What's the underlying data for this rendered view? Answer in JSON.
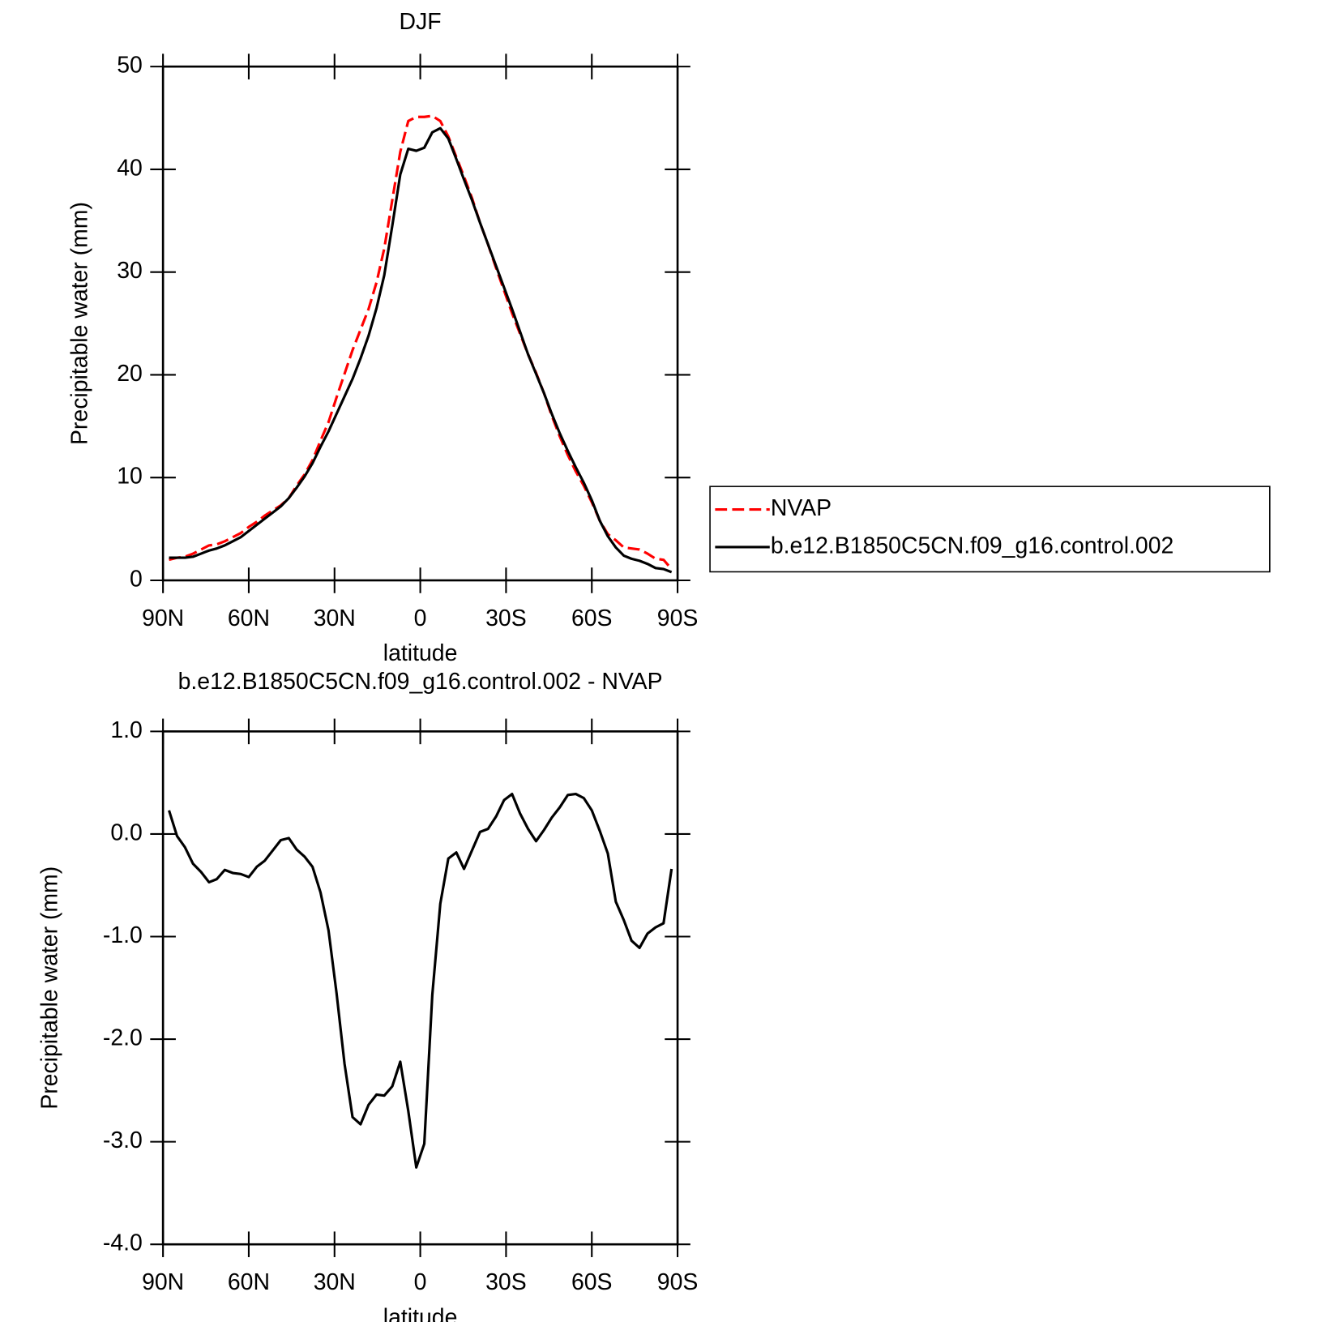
{
  "chart_data": [
    {
      "type": "line",
      "title": "DJF",
      "x_label": "latitude",
      "y_label": "Precipitable water (mm)",
      "x": [
        87.9,
        85.1,
        82.3,
        79.5,
        76.7,
        73.9,
        71.2,
        68.4,
        65.6,
        62.8,
        60.0,
        57.2,
        54.4,
        51.6,
        48.8,
        46.0,
        43.3,
        40.5,
        37.7,
        34.9,
        32.1,
        29.3,
        26.5,
        23.7,
        20.9,
        18.1,
        15.3,
        12.6,
        9.8,
        7.0,
        4.2,
        1.4,
        -1.4,
        -4.2,
        -7.0,
        -9.8,
        -12.6,
        -15.3,
        -18.1,
        -20.9,
        -23.7,
        -26.5,
        -29.3,
        -32.1,
        -34.9,
        -37.7,
        -40.5,
        -43.3,
        -46.0,
        -48.8,
        -51.6,
        -54.4,
        -57.2,
        -60.0,
        -62.8,
        -65.6,
        -68.4,
        -71.2,
        -73.9,
        -76.7,
        -79.5,
        -82.3,
        -85.1,
        -87.9
      ],
      "series": [
        {
          "name": "NVAP",
          "color": "#ff0000",
          "line_style": "dashed",
          "values": [
            2.0,
            2.2,
            2.3,
            2.6,
            3.0,
            3.4,
            3.5,
            3.8,
            4.2,
            4.6,
            5.2,
            5.7,
            6.3,
            6.8,
            7.3,
            8.0,
            9.2,
            10.3,
            11.7,
            13.6,
            15.4,
            17.8,
            20.1,
            22.4,
            24.4,
            26.4,
            29.0,
            32.3,
            37.0,
            41.7,
            44.7,
            45.1,
            45.1,
            45.2,
            44.7,
            43.2,
            41.2,
            39.3,
            37.2,
            34.8,
            32.7,
            30.4,
            28.2,
            26.0,
            24.0,
            22.0,
            20.2,
            18.2,
            16.0,
            14.0,
            12.2,
            10.6,
            9.2,
            7.6,
            5.8,
            4.5,
            3.9,
            3.2,
            3.1,
            3.0,
            2.6,
            2.1,
            2.0,
            1.1
          ]
        },
        {
          "name": "b.e12.B1850C5CN.f09_g16.control.002",
          "color": "#000000",
          "line_style": "solid",
          "values": [
            2.2,
            2.2,
            2.2,
            2.3,
            2.6,
            2.9,
            3.1,
            3.4,
            3.8,
            4.2,
            4.8,
            5.4,
            6.0,
            6.6,
            7.2,
            8.0,
            9.0,
            10.1,
            11.4,
            13.0,
            14.5,
            16.2,
            17.9,
            19.6,
            21.6,
            23.8,
            26.5,
            29.7,
            34.5,
            39.5,
            42.0,
            41.8,
            42.1,
            43.6,
            44.0,
            43.0,
            41.0,
            39.0,
            37.0,
            34.8,
            32.7,
            30.6,
            28.5,
            26.4,
            24.2,
            22.0,
            20.1,
            18.2,
            16.2,
            14.3,
            12.6,
            11.0,
            9.5,
            7.8,
            5.8,
            4.3,
            3.2,
            2.4,
            2.1,
            1.9,
            1.6,
            1.2,
            1.1,
            0.8
          ]
        }
      ],
      "xlim": [
        90,
        -90
      ],
      "xticks": [
        {
          "value": 90,
          "label": "90N"
        },
        {
          "value": 60,
          "label": "60N"
        },
        {
          "value": 30,
          "label": "30N"
        },
        0,
        {
          "value": -30,
          "label": "30S"
        },
        {
          "value": -60,
          "label": "60S"
        },
        {
          "value": -90,
          "label": "90S"
        }
      ],
      "ylim": [
        0,
        50
      ],
      "yticks": [
        0,
        10,
        20,
        30,
        40,
        50
      ],
      "legend_position": "right"
    },
    {
      "type": "line",
      "title": "b.e12.B1850C5CN.f09_g16.control.002 - NVAP",
      "x_label": "latitude",
      "y_label": "Precipitable water (mm)",
      "x": [
        87.9,
        85.1,
        82.3,
        79.5,
        76.7,
        73.9,
        71.2,
        68.4,
        65.6,
        62.8,
        60.0,
        57.2,
        54.4,
        51.6,
        48.8,
        46.0,
        43.3,
        40.5,
        37.7,
        34.9,
        32.1,
        29.3,
        26.5,
        23.7,
        20.9,
        18.1,
        15.3,
        12.6,
        9.8,
        7.0,
        4.2,
        1.4,
        -1.4,
        -4.2,
        -7.0,
        -9.8,
        -12.6,
        -15.3,
        -18.1,
        -20.9,
        -23.7,
        -26.5,
        -29.3,
        -32.1,
        -34.9,
        -37.7,
        -40.5,
        -43.3,
        -46.0,
        -48.8,
        -51.6,
        -54.4,
        -57.2,
        -60.0,
        -62.8,
        -65.6,
        -68.4,
        -71.2,
        -73.9,
        -76.7,
        -79.5,
        -82.3,
        -85.1,
        -87.9
      ],
      "values": [
        0.23,
        -0.02,
        -0.13,
        -0.29,
        -0.37,
        -0.47,
        -0.44,
        -0.35,
        -0.38,
        -0.39,
        -0.42,
        -0.32,
        -0.26,
        -0.16,
        -0.06,
        -0.04,
        -0.15,
        -0.22,
        -0.32,
        -0.57,
        -0.94,
        -1.55,
        -2.24,
        -2.76,
        -2.83,
        -2.64,
        -2.54,
        -2.55,
        -2.46,
        -2.22,
        -2.7,
        -3.25,
        -3.02,
        -1.57,
        -0.68,
        -0.24,
        -0.18,
        -0.34,
        -0.16,
        0.02,
        0.05,
        0.17,
        0.33,
        0.39,
        0.2,
        0.05,
        -0.07,
        0.04,
        0.16,
        0.26,
        0.38,
        0.39,
        0.35,
        0.23,
        0.03,
        -0.19,
        -0.66,
        -0.84,
        -1.04,
        -1.11,
        -0.97,
        -0.91,
        -0.87,
        -0.34
      ],
      "color": "#000000",
      "xlim": [
        90,
        -90
      ],
      "xticks": [
        {
          "value": 90,
          "label": "90N"
        },
        {
          "value": 60,
          "label": "60N"
        },
        {
          "value": 30,
          "label": "30N"
        },
        0,
        {
          "value": -30,
          "label": "30S"
        },
        {
          "value": -60,
          "label": "60S"
        },
        {
          "value": -90,
          "label": "90S"
        }
      ],
      "ylim": [
        -4,
        1
      ],
      "yticks": [
        {
          "value": -4,
          "label": "-4.0"
        },
        {
          "value": -3,
          "label": "-3.0"
        },
        {
          "value": -2,
          "label": "-2.0"
        },
        {
          "value": -1,
          "label": "-1.0"
        },
        {
          "value": 0,
          "label": "0.0"
        },
        {
          "value": 1,
          "label": "1.0"
        }
      ]
    }
  ]
}
